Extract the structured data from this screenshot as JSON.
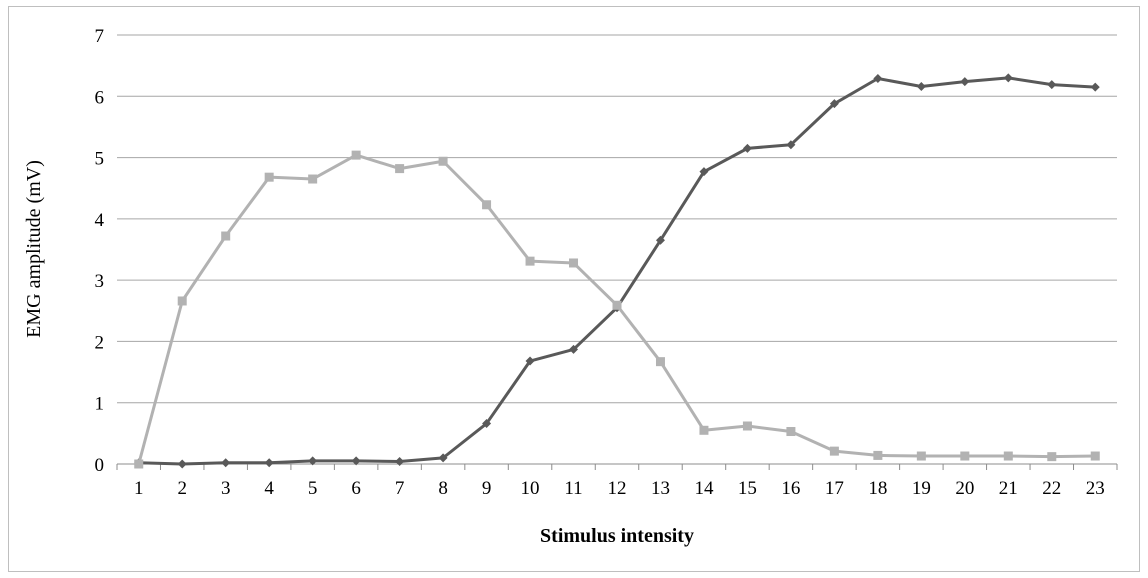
{
  "chart_data": {
    "type": "line",
    "xlabel": "Stimulus intensity",
    "ylabel": "EMG amplitude (mV)",
    "categories": [
      "1",
      "2",
      "3",
      "4",
      "5",
      "6",
      "7",
      "8",
      "9",
      "10",
      "11",
      "12",
      "13",
      "14",
      "15",
      "16",
      "17",
      "18",
      "19",
      "20",
      "21",
      "22",
      "23"
    ],
    "ylim": [
      0,
      7
    ],
    "yticks": [
      "0",
      "1",
      "2",
      "3",
      "4",
      "5",
      "6",
      "7"
    ],
    "grid": true,
    "legend": "none",
    "series": [
      {
        "color": "#595959",
        "marker": "diamond",
        "values": [
          0.02,
          0.0,
          0.02,
          0.02,
          0.05,
          0.05,
          0.04,
          0.1,
          0.66,
          1.68,
          1.87,
          2.55,
          3.65,
          4.77,
          5.15,
          5.21,
          5.88,
          6.29,
          6.16,
          6.24,
          6.3,
          6.19,
          6.15
        ]
      },
      {
        "color": "#b2b2b2",
        "marker": "square",
        "values": [
          0.0,
          2.66,
          3.72,
          4.68,
          4.65,
          5.04,
          4.82,
          4.94,
          4.23,
          3.31,
          3.28,
          2.59,
          1.67,
          0.55,
          0.62,
          0.53,
          0.21,
          0.14,
          0.13,
          0.13,
          0.13,
          0.12,
          0.13
        ]
      }
    ]
  }
}
